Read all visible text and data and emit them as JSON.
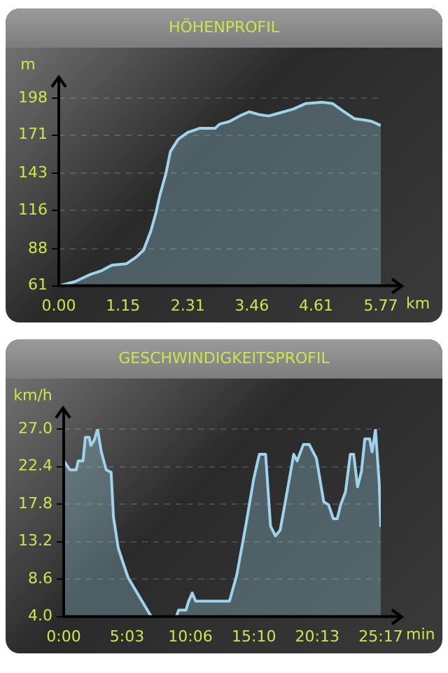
{
  "chart_data": [
    {
      "type": "area",
      "title": "HÖHENPROFIL",
      "xlabel": "km",
      "ylabel": "m",
      "grid": "y",
      "x": [
        0,
        0.29,
        0.55,
        0.77,
        0.95,
        1.21,
        1.39,
        1.52,
        1.65,
        1.74,
        1.81,
        1.92,
        2.0,
        2.14,
        2.31,
        2.53,
        2.8,
        2.88,
        3.06,
        3.24,
        3.41,
        3.59,
        3.76,
        3.94,
        4.2,
        4.42,
        4.73,
        4.91,
        5.08,
        5.3,
        5.48,
        5.61,
        5.77
      ],
      "series": [
        {
          "color": "#9fd3ec",
          "values": [
            61,
            64,
            69,
            72,
            76,
            77,
            82,
            87,
            101,
            114,
            127,
            143,
            159,
            168,
            173,
            176,
            176,
            179,
            181,
            185,
            188,
            186,
            185,
            187,
            190,
            194,
            195,
            194,
            189,
            183,
            182,
            181,
            178
          ]
        }
      ],
      "xlim": [
        0,
        5.77
      ],
      "xticks": [
        {
          "value": 0,
          "label": "0.00"
        },
        1.15,
        2.31,
        3.46,
        4.61,
        5.77
      ],
      "ylim": [
        61,
        198
      ],
      "yticks": [
        61,
        88,
        116,
        143,
        171,
        198
      ]
    },
    {
      "type": "area",
      "title": "GESCHWINDIGKEITSPROFIL",
      "xlabel": "min",
      "ylabel": "km/h",
      "grid": "y",
      "x": [
        0,
        0.5,
        1.0,
        1.16,
        1.54,
        1.73,
        2.04,
        2.16,
        2.43,
        2.7,
        3.0,
        3.39,
        3.78,
        3.97,
        4.35,
        5.13,
        6.09,
        6.98,
        8.0,
        8.98,
        9.17,
        9.75,
        9.94,
        10.25,
        10.52,
        13.22,
        13.8,
        14.57,
        15.14,
        15.6,
        16.1,
        16.49,
        16.88,
        17.26,
        17.65,
        18.03,
        18.34,
        18.61,
        19.11,
        19.58,
        20.15,
        20.73,
        21.12,
        21.5,
        21.81,
        22.08,
        22.47,
        22.85,
        23.12,
        23.43,
        23.74,
        24.01,
        24.39,
        24.59,
        24.86,
        25.16,
        25.28
      ],
      "series": [
        {
          "color": "#9fd3ec",
          "values": [
            23.1,
            22.0,
            22.0,
            23.1,
            23.1,
            26.0,
            26.0,
            25.0,
            25.6,
            27.0,
            24.2,
            22.0,
            21.7,
            16.2,
            12.4,
            8.8,
            6.3,
            4.0,
            null,
            4.0,
            4.8,
            4.8,
            5.8,
            6.9,
            5.9,
            5.9,
            9.1,
            15.6,
            20.8,
            23.9,
            23.9,
            15.1,
            13.9,
            14.6,
            17.9,
            21.2,
            23.9,
            23.1,
            25.1,
            25.1,
            23.4,
            18.1,
            17.7,
            16.0,
            16.0,
            17.7,
            19.3,
            23.9,
            23.9,
            19.9,
            21.8,
            25.8,
            25.8,
            24.2,
            26.9,
            20.3,
            15.0
          ]
        }
      ],
      "xlim": [
        0,
        25.283
      ],
      "xticks": [
        {
          "value": 0,
          "label": "0:00"
        },
        {
          "value": 5.05,
          "label": "5:03"
        },
        {
          "value": 10.1,
          "label": "10:06"
        },
        {
          "value": 15.167,
          "label": "15:10"
        },
        {
          "value": 20.217,
          "label": "20:13"
        },
        {
          "value": 25.283,
          "label": "25:17"
        }
      ],
      "ylim": [
        4,
        27
      ],
      "yticks": [
        {
          "value": 4,
          "label": "4.0"
        },
        8.6,
        13.2,
        17.8,
        22.4,
        {
          "value": 27,
          "label": "27.0"
        }
      ]
    }
  ]
}
